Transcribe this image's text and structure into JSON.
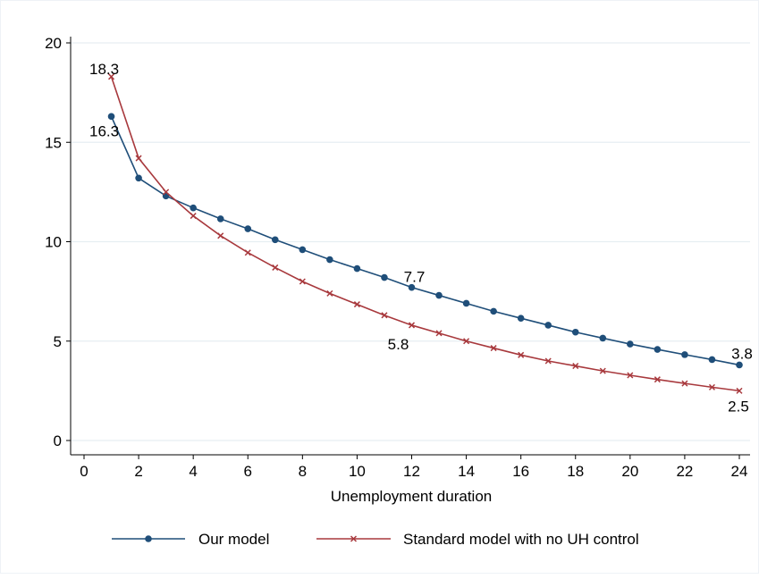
{
  "chart_data": {
    "type": "line",
    "title": "",
    "xlabel": "Unemployment duration",
    "ylabel": "",
    "xlim": [
      0,
      24
    ],
    "ylim": [
      0,
      20
    ],
    "xticks": [
      0,
      2,
      4,
      6,
      8,
      10,
      12,
      14,
      16,
      18,
      20,
      22,
      24
    ],
    "yticks": [
      0,
      5,
      10,
      15,
      20
    ],
    "grid": "horizontal",
    "legend_position": "bottom",
    "x": [
      1,
      2,
      3,
      4,
      5,
      6,
      7,
      8,
      9,
      10,
      11,
      12,
      13,
      14,
      15,
      16,
      17,
      18,
      19,
      20,
      21,
      22,
      23,
      24
    ],
    "series": [
      {
        "name": "Our model",
        "color": "#1f4e79",
        "marker": "circle",
        "values": [
          16.3,
          13.2,
          12.3,
          11.7,
          11.15,
          10.65,
          10.1,
          9.6,
          9.1,
          8.65,
          8.2,
          7.7,
          7.3,
          6.9,
          6.5,
          6.15,
          5.8,
          5.45,
          5.15,
          4.85,
          4.58,
          4.32,
          4.07,
          3.8
        ],
        "value_labels": [
          {
            "index": 0,
            "text": "16.3"
          },
          {
            "index": 11,
            "text": "7.7"
          },
          {
            "index": 23,
            "text": "3.8"
          }
        ]
      },
      {
        "name": "Standard model with no UH control",
        "color": "#a8393d",
        "marker": "x",
        "values": [
          18.3,
          14.2,
          12.5,
          11.3,
          10.3,
          9.45,
          8.7,
          8.0,
          7.4,
          6.85,
          6.3,
          5.8,
          5.4,
          5.0,
          4.65,
          4.3,
          4.0,
          3.75,
          3.5,
          3.28,
          3.07,
          2.87,
          2.68,
          2.5
        ],
        "value_labels": [
          {
            "index": 0,
            "text": "18.3"
          },
          {
            "index": 11,
            "text": "5.8"
          },
          {
            "index": 23,
            "text": "2.5"
          }
        ]
      }
    ]
  }
}
